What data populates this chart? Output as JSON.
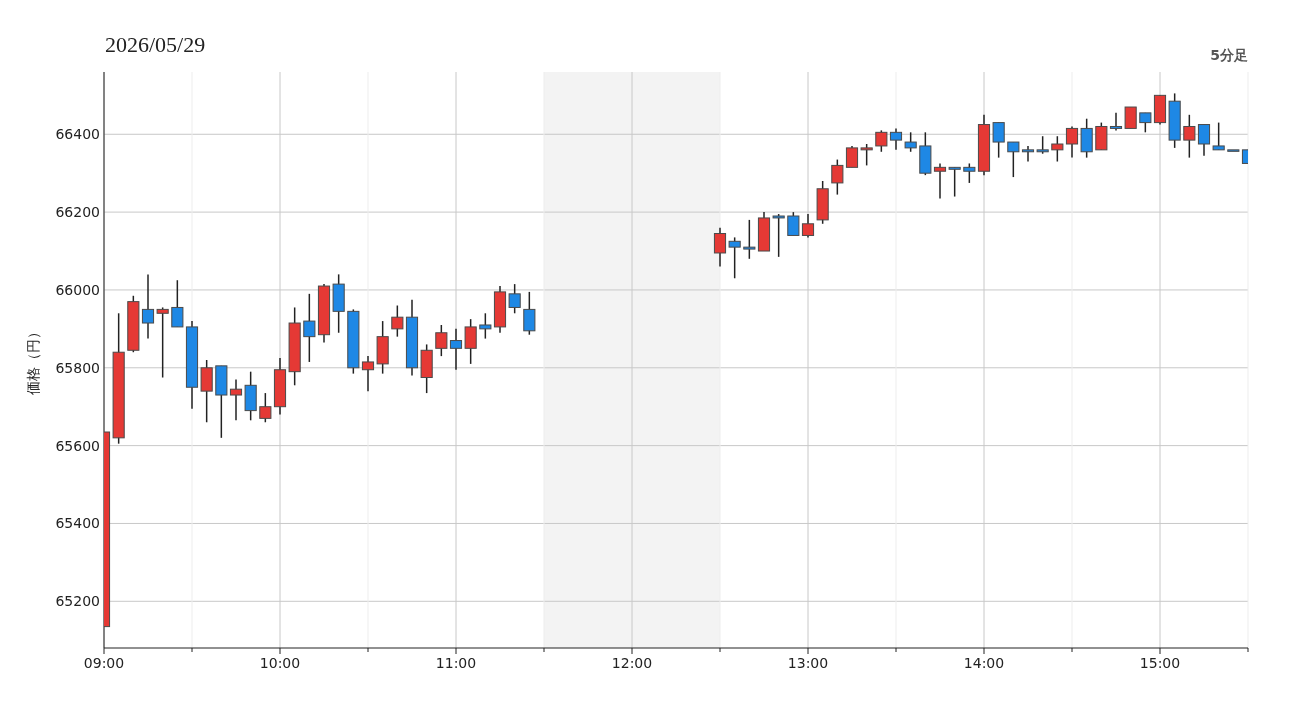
{
  "chart_data": {
    "type": "candlestick",
    "title": "2026/05/29",
    "ylabel": "価格（円）",
    "annotations": [
      "5分足"
    ],
    "x": [
      9,
      9.0833,
      9.1667,
      9.25,
      9.3333,
      9.4167,
      9.5,
      9.5833,
      9.6667,
      9.75,
      9.8333,
      9.9167,
      10,
      10.0833,
      10.1667,
      10.25,
      10.3333,
      10.4167,
      10.5,
      10.5833,
      10.6667,
      10.75,
      10.8333,
      10.9167,
      11,
      11.0833,
      11.1667,
      11.25,
      11.3333,
      11.4167,
      12.5,
      12.5833,
      12.6667,
      12.75,
      12.8333,
      12.9167,
      13,
      13.0833,
      13.1667,
      13.25,
      13.3333,
      13.4167,
      13.5,
      13.5833,
      13.6667,
      13.75,
      13.8333,
      13.9167,
      14,
      14.0833,
      14.1667,
      14.25,
      14.3333,
      14.4167,
      14.5,
      14.5833,
      14.6667,
      14.75,
      14.8333,
      14.9167,
      15,
      15.0833,
      15.1667,
      15.25,
      15.3333,
      15.4167,
      15.5
    ],
    "ohlc": [
      [
        65135,
        65635,
        65135,
        65635
      ],
      [
        65620,
        65940,
        65605,
        65840
      ],
      [
        65845,
        65985,
        65840,
        65970
      ],
      [
        65950,
        66040,
        65875,
        65915
      ],
      [
        65940,
        65955,
        65775,
        65950
      ],
      [
        65955,
        66025,
        65905,
        65905
      ],
      [
        65905,
        65920,
        65695,
        65750
      ],
      [
        65740,
        65820,
        65660,
        65800
      ],
      [
        65805,
        65805,
        65620,
        65730
      ],
      [
        65730,
        65770,
        65665,
        65745
      ],
      [
        65755,
        65790,
        65665,
        65690
      ],
      [
        65670,
        65735,
        65660,
        65700
      ],
      [
        65700,
        65825,
        65680,
        65795
      ],
      [
        65790,
        65955,
        65755,
        65915
      ],
      [
        65920,
        65990,
        65815,
        65880
      ],
      [
        65885,
        66015,
        65865,
        66010
      ],
      [
        66015,
        66040,
        65890,
        65945
      ],
      [
        65945,
        65950,
        65785,
        65800
      ],
      [
        65795,
        65830,
        65740,
        65815
      ],
      [
        65810,
        65920,
        65785,
        65880
      ],
      [
        65900,
        65960,
        65880,
        65930
      ],
      [
        65930,
        65975,
        65780,
        65800
      ],
      [
        65775,
        65860,
        65735,
        65845
      ],
      [
        65850,
        65910,
        65830,
        65890
      ],
      [
        65870,
        65900,
        65795,
        65850
      ],
      [
        65850,
        65925,
        65810,
        65905
      ],
      [
        65910,
        65940,
        65875,
        65900
      ],
      [
        65905,
        66010,
        65890,
        65995
      ],
      [
        65990,
        66015,
        65940,
        65955
      ],
      [
        65950,
        65995,
        65885,
        65895
      ],
      [
        66095,
        66160,
        66060,
        66145
      ],
      [
        66125,
        66135,
        66030,
        66110
      ],
      [
        66110,
        66180,
        66080,
        66105
      ],
      [
        66100,
        66200,
        66100,
        66185
      ],
      [
        66190,
        66195,
        66085,
        66185
      ],
      [
        66190,
        66200,
        66140,
        66140
      ],
      [
        66140,
        66195,
        66135,
        66170
      ],
      [
        66180,
        66280,
        66170,
        66260
      ],
      [
        66275,
        66335,
        66245,
        66320
      ],
      [
        66315,
        66370,
        66315,
        66365
      ],
      [
        66360,
        66375,
        66320,
        66365
      ],
      [
        66370,
        66410,
        66355,
        66405
      ],
      [
        66405,
        66415,
        66360,
        66385
      ],
      [
        66380,
        66405,
        66355,
        66365
      ],
      [
        66370,
        66405,
        66295,
        66300
      ],
      [
        66305,
        66325,
        66235,
        66315
      ],
      [
        66315,
        66315,
        66240,
        66310
      ],
      [
        66315,
        66325,
        66275,
        66305
      ],
      [
        66305,
        66450,
        66295,
        66425
      ],
      [
        66430,
        66430,
        66340,
        66380
      ],
      [
        66380,
        66380,
        66290,
        66355
      ],
      [
        66360,
        66370,
        66330,
        66355
      ],
      [
        66360,
        66395,
        66350,
        66355
      ],
      [
        66360,
        66395,
        66330,
        66375
      ],
      [
        66375,
        66420,
        66340,
        66415
      ],
      [
        66415,
        66440,
        66340,
        66355
      ],
      [
        66360,
        66430,
        66360,
        66420
      ],
      [
        66420,
        66455,
        66410,
        66415
      ],
      [
        66415,
        66470,
        66415,
        66470
      ],
      [
        66455,
        66455,
        66405,
        66430
      ],
      [
        66430,
        66500,
        66425,
        66500
      ],
      [
        66485,
        66505,
        66365,
        66385
      ],
      [
        66385,
        66450,
        66340,
        66420
      ],
      [
        66425,
        66425,
        66345,
        66375
      ],
      [
        66370,
        66430,
        66360,
        66360
      ],
      [
        66360,
        66360,
        66360,
        66360
      ],
      [
        66360,
        66360,
        66325,
        66325
      ]
    ],
    "colors": [
      "#e53935",
      "#e53935",
      "#e53935",
      "#1e88e5",
      "#e53935",
      "#1e88e5",
      "#1e88e5",
      "#e53935",
      "#1e88e5",
      "#e53935",
      "#1e88e5",
      "#e53935",
      "#e53935",
      "#e53935",
      "#1e88e5",
      "#e53935",
      "#1e88e5",
      "#1e88e5",
      "#e53935",
      "#e53935",
      "#e53935",
      "#1e88e5",
      "#e53935",
      "#e53935",
      "#1e88e5",
      "#e53935",
      "#1e88e5",
      "#e53935",
      "#1e88e5",
      "#1e88e5",
      "#e53935",
      "#1e88e5",
      "#1e88e5",
      "#e53935",
      "#1e88e5",
      "#1e88e5",
      "#e53935",
      "#e53935",
      "#e53935",
      "#e53935",
      "#e53935",
      "#e53935",
      "#1e88e5",
      "#1e88e5",
      "#1e88e5",
      "#e53935",
      "#1e88e5",
      "#1e88e5",
      "#e53935",
      "#1e88e5",
      "#1e88e5",
      "#1e88e5",
      "#1e88e5",
      "#e53935",
      "#e53935",
      "#1e88e5",
      "#e53935",
      "#1e88e5",
      "#e53935",
      "#1e88e5",
      "#e53935",
      "#1e88e5",
      "#e53935",
      "#1e88e5",
      "#1e88e5",
      "#1e88e5",
      "#1e88e5"
    ],
    "xlim": [
      9,
      15.5
    ],
    "ylim": [
      65080,
      66560
    ],
    "xticks": [
      {
        "value": 9,
        "label": "09:00"
      },
      {
        "value": 9.5,
        "label": null
      },
      {
        "value": 10,
        "label": "10:00"
      },
      {
        "value": 10.5,
        "label": null
      },
      {
        "value": 11,
        "label": "11:00"
      },
      {
        "value": 11.5,
        "label": null
      },
      {
        "value": 12,
        "label": "12:00"
      },
      {
        "value": 12.5,
        "label": null
      },
      {
        "value": 13,
        "label": "13:00"
      },
      {
        "value": 13.5,
        "label": null
      },
      {
        "value": 14,
        "label": "14:00"
      },
      {
        "value": 14.5,
        "label": null
      },
      {
        "value": 15,
        "label": "15:00"
      },
      {
        "value": 15.5,
        "label": null
      }
    ],
    "yticks": [
      65200,
      65400,
      65600,
      65800,
      66000,
      66200,
      66400
    ],
    "grid": true,
    "bands": [
      {
        "axis": "x",
        "from": 11.5,
        "to": 12.5,
        "label": null,
        "color": "#f3f3f3"
      }
    ]
  }
}
